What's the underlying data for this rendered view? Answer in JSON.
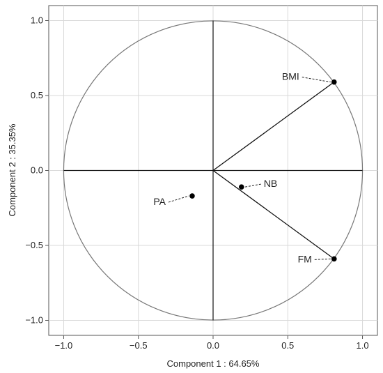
{
  "chart_data": {
    "type": "scatter",
    "subtype": "pca-correlation-circle",
    "xlabel": "Component 1 : 64.65%",
    "ylabel": "Component 2 : 35.35%",
    "xlim": [
      -1.1,
      1.1
    ],
    "ylim": [
      -1.1,
      1.1
    ],
    "xticks": [
      {
        "value": -1.0,
        "label": "-1.0"
      },
      {
        "value": -0.5,
        "label": "-0.5"
      },
      {
        "value": 0.0,
        "label": "0.0"
      },
      {
        "value": 0.5,
        "label": "0.5"
      },
      {
        "value": 1.0,
        "label": "1.0"
      }
    ],
    "yticks": [
      {
        "value": 1.0,
        "label": "1.0"
      },
      {
        "value": 0.5,
        "label": "0.5"
      },
      {
        "value": 0.0,
        "label": "0.0"
      },
      {
        "value": -0.5,
        "label": "-0.5"
      },
      {
        "value": -1.0,
        "label": "-1.0"
      }
    ],
    "grid": true,
    "unit_circle": true,
    "points": [
      {
        "label": "BMI",
        "x": 0.81,
        "y": 0.59,
        "vector": true
      },
      {
        "label": "NB",
        "x": 0.19,
        "y": -0.11,
        "vector": false
      },
      {
        "label": "PA",
        "x": -0.14,
        "y": -0.17,
        "vector": false
      },
      {
        "label": "FM",
        "x": 0.81,
        "y": -0.59,
        "vector": true
      }
    ]
  }
}
